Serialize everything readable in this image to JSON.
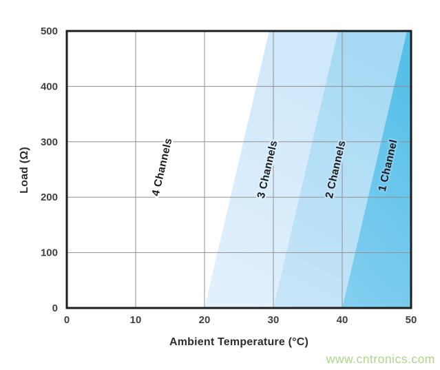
{
  "watermark": {
    "text": "www.cntronics.com",
    "color": "#aed58c"
  },
  "chart_data": {
    "type": "area",
    "title": "",
    "xlabel": "Ambient Temperature (°C)",
    "ylabel": "Load (Ω)",
    "xlim": [
      0,
      50
    ],
    "ylim": [
      0,
      500
    ],
    "x_ticks": [
      "0",
      "10",
      "20",
      "30",
      "40",
      "50"
    ],
    "y_ticks": [
      "0",
      "100",
      "200",
      "300",
      "400",
      "500"
    ],
    "grid": true,
    "grid_color": "#8f8f8f",
    "axis_color": "#1c1c1c",
    "legend_position": "none",
    "description": "Number of usable channels as a function of ambient temperature and load; diagonal band boundaries run from 20, 30 and 40 °C at 0 Ω to about 29.4, 39.4 and 49.4 °C at 500 Ω",
    "regions": [
      {
        "label": "4 Channels",
        "x_bottom": [
          0,
          20
        ],
        "x_top": [
          0,
          29.4
        ],
        "fill_bottom": "#ffffff",
        "fill_top": "#ffffff",
        "halo": "#ffffff",
        "label_x": 14.3,
        "label_y": 253
      },
      {
        "label": "3 Channels",
        "x_bottom": [
          20,
          30
        ],
        "x_top": [
          29.4,
          39.4
        ],
        "fill_bottom": "#e3f1fc",
        "fill_top": "#cfe8fa",
        "halo": "#ddeefb",
        "label_x": 29.6,
        "label_y": 249
      },
      {
        "label": "2 Channels",
        "x_bottom": [
          30,
          40
        ],
        "x_top": [
          39.4,
          49.4
        ],
        "fill_bottom": "#c8e5f8",
        "fill_top": "#a6daf4",
        "halo": "#c2e2f7",
        "label_x": 39.5,
        "label_y": 249
      },
      {
        "label": "1 Channel",
        "x_bottom": [
          40,
          50
        ],
        "x_top": [
          49.4,
          50
        ],
        "fill_bottom": "#84cff0",
        "fill_top": "#58bfe8",
        "halo": "#7fccf0",
        "label_x": 47.1,
        "label_y": 256
      }
    ]
  }
}
